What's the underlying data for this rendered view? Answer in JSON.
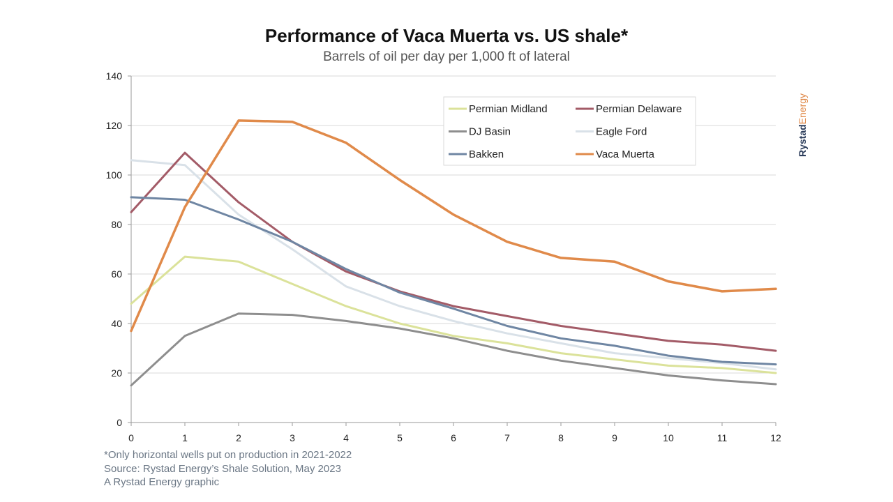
{
  "title": "Performance of Vaca Muerta vs. US shale*",
  "subtitle": "Barrels of oil per day per 1,000 ft of lateral",
  "footnotes": [
    "*Only horizontal wells put on production in 2021-2022",
    "Source: Rystad Energy’s Shale Solution, May 2023",
    "A Rystad Energy graphic"
  ],
  "logo": {
    "part1": "Rystad",
    "part2": "Energy"
  },
  "chart_data": {
    "type": "line",
    "title": "Performance of Vaca Muerta vs. US shale*",
    "subtitle": "Barrels of oil per day per 1,000 ft of lateral",
    "xlabel": "",
    "ylabel": "",
    "x": [
      0,
      1,
      2,
      3,
      4,
      5,
      6,
      7,
      8,
      9,
      10,
      11,
      12
    ],
    "xlim": [
      0,
      12
    ],
    "ylim": [
      0,
      140
    ],
    "yticks": [
      0,
      20,
      40,
      60,
      80,
      100,
      120,
      140
    ],
    "grid": true,
    "legend_position": "top-right",
    "series": [
      {
        "name": "Permian Midland",
        "color": "#dbe29a",
        "values": [
          48,
          67,
          65,
          56,
          47,
          40,
          35,
          32,
          28,
          25.5,
          23,
          22,
          20
        ]
      },
      {
        "name": "Permian Delaware",
        "color": "#a35b67",
        "values": [
          85,
          109,
          89,
          73,
          61,
          53,
          47,
          43,
          39,
          36,
          33,
          31.5,
          29
        ]
      },
      {
        "name": "DJ Basin",
        "color": "#8e8e8e",
        "values": [
          15,
          35,
          44,
          43.5,
          41,
          38,
          34,
          29,
          25,
          22,
          19,
          17,
          15.5
        ]
      },
      {
        "name": "Eagle Ford",
        "color": "#d9e1e8",
        "values": [
          106,
          104,
          84,
          70,
          55,
          47,
          41,
          36,
          32,
          28,
          26,
          24,
          21.5
        ]
      },
      {
        "name": "Bakken",
        "color": "#6f86a3",
        "values": [
          91,
          90,
          82,
          73,
          62,
          52.5,
          46,
          39,
          34,
          31,
          27,
          24.5,
          23.5
        ]
      },
      {
        "name": "Vaca Muerta",
        "color": "#e08a4a",
        "values": [
          37,
          87,
          122,
          121.5,
          113,
          98,
          84,
          73,
          66.5,
          65,
          57,
          53,
          54
        ]
      }
    ]
  }
}
